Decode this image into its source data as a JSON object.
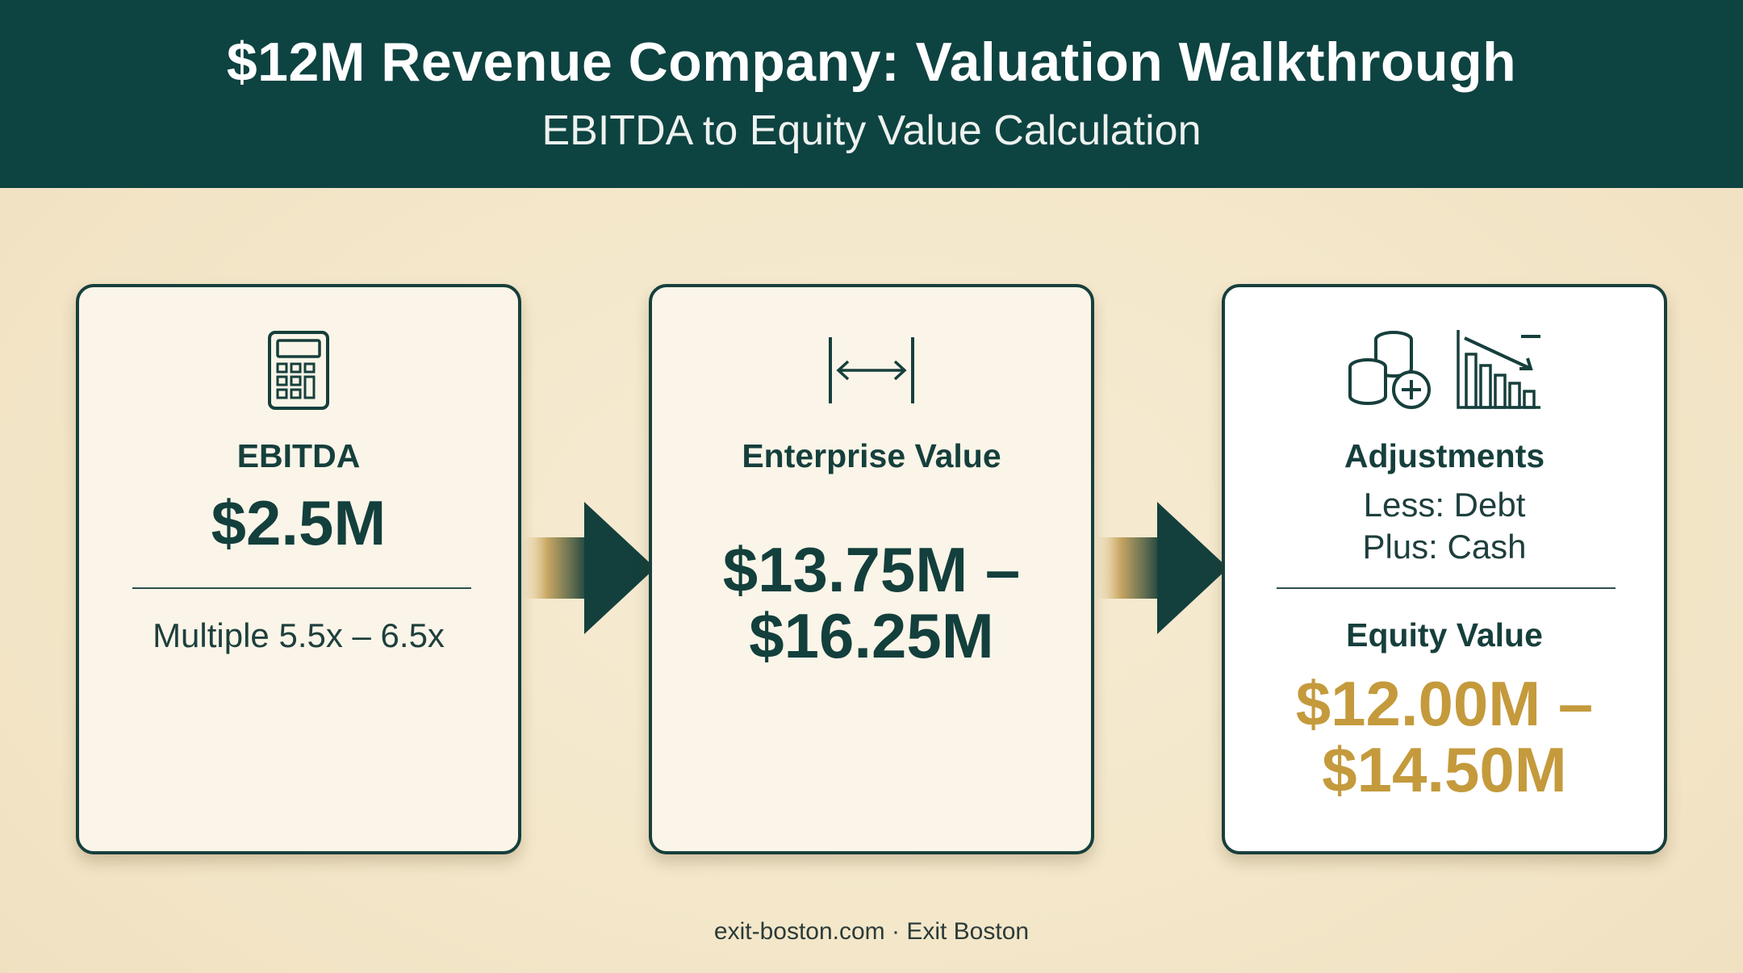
{
  "header": {
    "title": "$12M Revenue Company: Valuation Walkthrough",
    "subtitle": "EBITDA to Equity Value Calculation"
  },
  "colors": {
    "header_bg": "#0d4341",
    "background": "#f3e6c8",
    "dark_green": "#133f3c",
    "gold": "#c49a3c"
  },
  "cards": {
    "ebitda": {
      "icon": "calculator-icon",
      "label": "EBITDA",
      "value": "$2.5M",
      "multiple": "Multiple 5.5x – 6.5x"
    },
    "enterprise_value": {
      "icon": "range-arrows-icon",
      "label": "Enterprise Value",
      "value_line1": "$13.75M –",
      "value_line2": "$16.25M"
    },
    "equity": {
      "icons": [
        "coin-stack-plus-icon",
        "bar-chart-down-icon"
      ],
      "label": "Adjustments",
      "less": "Less: Debt",
      "plus": "Plus: Cash",
      "equity_label": "Equity Value",
      "value_line1": "$12.00M –",
      "value_line2": "$14.50M"
    }
  },
  "footer": {
    "text": "exit-boston.com · Exit Boston"
  }
}
